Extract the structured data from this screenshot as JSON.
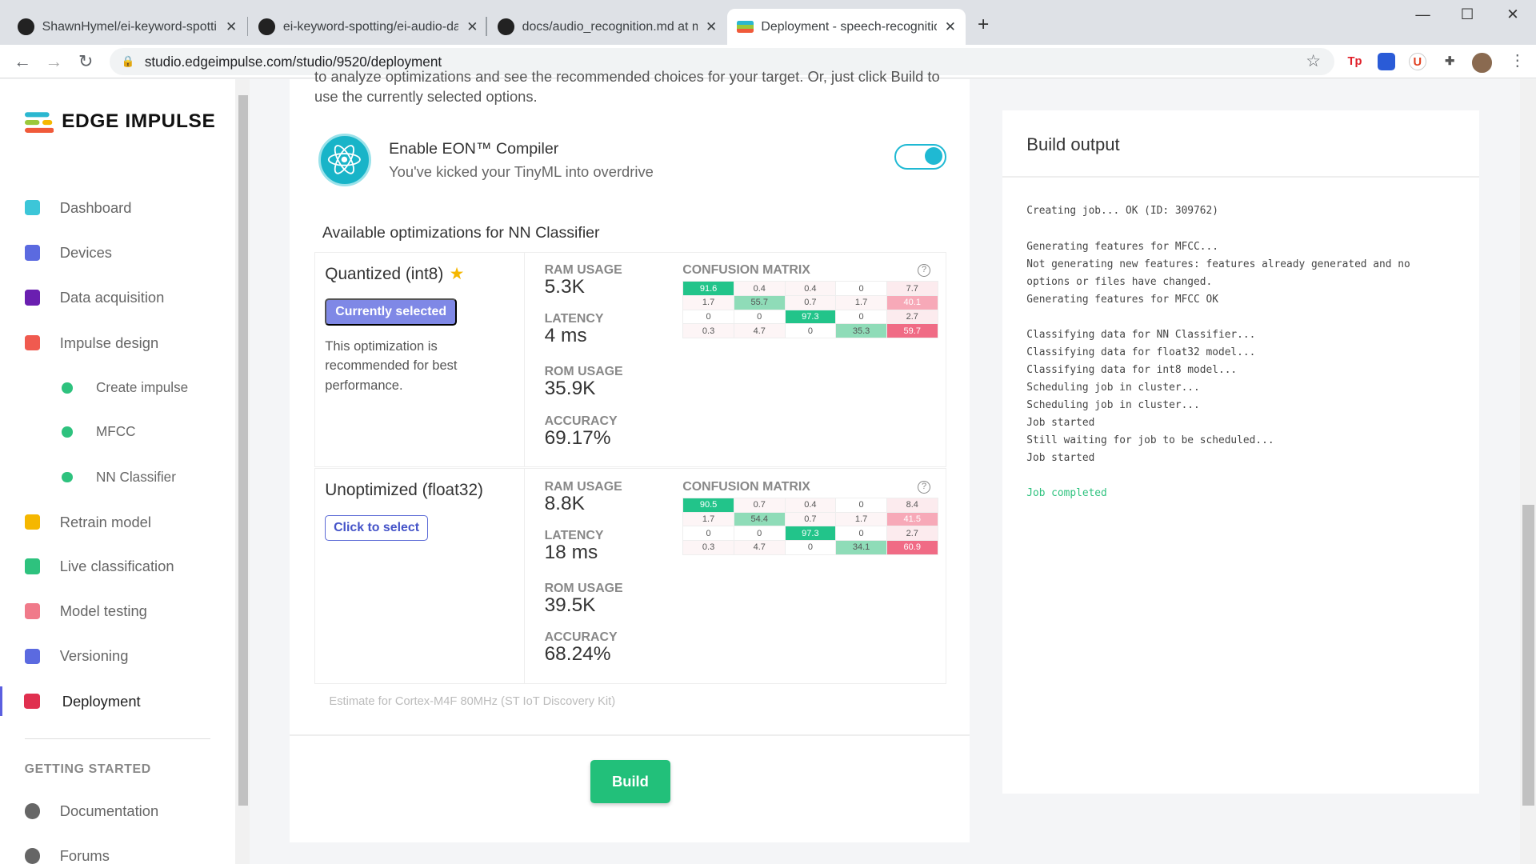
{
  "browser": {
    "tabs": [
      {
        "title": "ShawnHymel/ei-keyword-spottin",
        "icon": "github-icon"
      },
      {
        "title": "ei-keyword-spotting/ei-audio-da",
        "icon": "github-icon"
      },
      {
        "title": "docs/audio_recognition.md at m",
        "icon": "github-icon"
      },
      {
        "title": "Deployment - speech-recognitio",
        "icon": "edge-impulse-icon",
        "active": true
      }
    ],
    "url": "studio.edgeimpulse.com/studio/9520/deployment",
    "extensions": [
      "Tp",
      "U"
    ]
  },
  "sidebar": {
    "logo": "EDGE IMPULSE",
    "items": [
      {
        "label": "Dashboard",
        "icon": "monitor-icon",
        "color": "#3cc6d8"
      },
      {
        "label": "Devices",
        "icon": "chip-icon",
        "color": "#5b6ae0"
      },
      {
        "label": "Data acquisition",
        "icon": "database-icon",
        "color": "#6a1fb0"
      },
      {
        "label": "Impulse design",
        "icon": "pulse-icon",
        "color": "#f05a4f"
      },
      {
        "label": "Create impulse",
        "sub": true
      },
      {
        "label": "MFCC",
        "sub": true
      },
      {
        "label": "NN Classifier",
        "sub": true
      },
      {
        "label": "Retrain model",
        "icon": "shuffle-icon",
        "color": "#f5b700"
      },
      {
        "label": "Live classification",
        "icon": "signal-icon",
        "color": "#2ec27e"
      },
      {
        "label": "Model testing",
        "icon": "clipboard-icon",
        "color": "#f07a8a"
      },
      {
        "label": "Versioning",
        "icon": "branch-icon",
        "color": "#5b6ae0"
      },
      {
        "label": "Deployment",
        "icon": "box-icon",
        "color": "#e0304f",
        "active": true
      }
    ],
    "getting_started": "GETTING STARTED",
    "footer_items": [
      {
        "label": "Documentation",
        "icon": "rocket-icon"
      },
      {
        "label": "Forums",
        "icon": "chat-icon"
      }
    ]
  },
  "main": {
    "intro": "to analyze optimizations and see the recommended choices for your target. Or, just click Build to use the currently selected options.",
    "eon": {
      "title": "Enable EON™ Compiler",
      "subtitle": "You've kicked your TinyML into overdrive",
      "enabled": true
    },
    "available_title": "Available optimizations for NN Classifier",
    "labels": {
      "ram": "RAM USAGE",
      "latency": "LATENCY",
      "rom": "ROM USAGE",
      "accuracy": "ACCURACY",
      "cm": "CONFUSION MATRIX"
    },
    "optimizations": [
      {
        "name": "Quantized (int8)",
        "recommended": true,
        "button": "Currently selected",
        "description": "This optimization is recommended for best performance.",
        "ram": "5.3K",
        "latency": "4 ms",
        "rom": "35.9K",
        "accuracy": "69.17%",
        "matrix": [
          [
            91.6,
            0.4,
            0.4,
            0,
            7.7
          ],
          [
            1.7,
            55.7,
            0.7,
            1.7,
            40.1
          ],
          [
            0,
            0,
            97.3,
            0,
            2.7
          ],
          [
            0.3,
            4.7,
            0,
            35.3,
            59.7
          ]
        ]
      },
      {
        "name": "Unoptimized (float32)",
        "recommended": false,
        "button": "Click to select",
        "description": "",
        "ram": "8.8K",
        "latency": "18 ms",
        "rom": "39.5K",
        "accuracy": "68.24%",
        "matrix": [
          [
            90.5,
            0.7,
            0.4,
            0,
            8.4
          ],
          [
            1.7,
            54.4,
            0.7,
            1.7,
            41.5
          ],
          [
            0,
            0,
            97.3,
            0,
            2.7
          ],
          [
            0.3,
            4.7,
            0,
            34.1,
            60.9
          ]
        ]
      }
    ],
    "estimate": "Estimate for Cortex-M4F 80MHz (ST IoT Discovery Kit)",
    "build_label": "Build"
  },
  "build_output": {
    "title": "Build output",
    "lines": [
      "Creating job... OK (ID: 309762)",
      "",
      "Generating features for MFCC...",
      "Not generating new features: features already generated and no",
      "options or files have changed.",
      "Generating features for MFCC OK",
      "",
      "Classifying data for NN Classifier...",
      "Classifying data for float32 model...",
      "Classifying data for int8 model...",
      "Scheduling job in cluster...",
      "Scheduling job in cluster...",
      "Job started",
      "Still waiting for job to be scheduled...",
      "Job started",
      ""
    ],
    "completed": "Job completed"
  },
  "colors": {
    "accent": "#5b5fe0",
    "green": "#22c07a",
    "eon": "#1fb9d3"
  }
}
